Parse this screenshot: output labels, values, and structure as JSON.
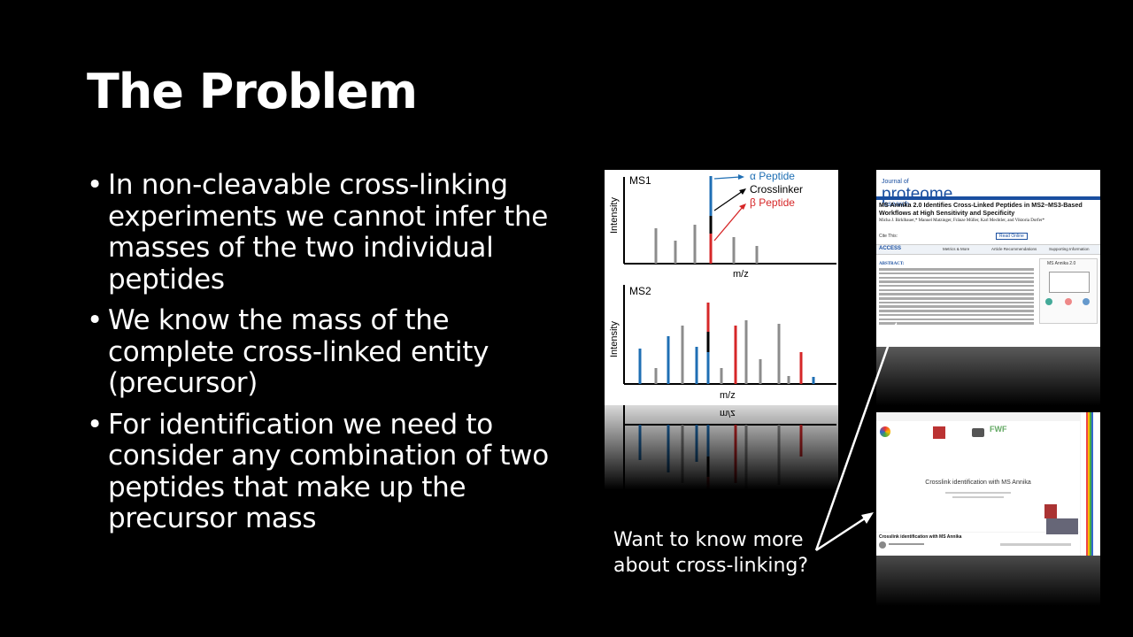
{
  "slide": {
    "title": "The Problem",
    "bullets": [
      "In non-cleavable cross-linking experiments we cannot infer the masses of the two individual peptides",
      "We know the mass of the complete cross-linked entity (precursor)",
      "For identification we need to consider any combination of two peptides that make up the precursor mass"
    ],
    "caption_line1": "Want to know more",
    "caption_line2": "about cross-linking?"
  },
  "ms_figure": {
    "ms1_label": "MS1",
    "ms2_label": "MS2",
    "ylabel": "Intensity",
    "xlabel": "m/z",
    "legend_alpha": "α Peptide",
    "legend_crosslinker": "Crosslinker",
    "legend_beta": "β Peptide",
    "colors": {
      "alpha": "#1f6fb4",
      "beta": "#d62728",
      "crosslinker": "#000000",
      "other": "#8c8c8c"
    }
  },
  "paper": {
    "journal_small": "Journal of",
    "journal_name": "proteome",
    "journal_sub": "research",
    "title": "MS Annika 2.0 Identifies Cross-Linked Peptides in MS2–MS3-Based Workflows at High Sensitivity and Specificity",
    "authors": "Micha J. Birklbauer,* Manuel Matzinger, Fränze Müller, Karl Mechtler, and Viktoria Dorfer*",
    "cite": "Cite This:",
    "read": "Read Online",
    "access": "ACCESS",
    "metrics": "Metrics & More",
    "recs": "Article Recommendations",
    "support": "Supporting Information",
    "fig_label": "MS Annika 2.0",
    "abstract_label": "ABSTRACT:"
  },
  "video": {
    "slide_title": "Crosslink identification with MS Annika",
    "video_title": "Crosslink identification with MS Annika",
    "logo_fwf": "FWF"
  }
}
